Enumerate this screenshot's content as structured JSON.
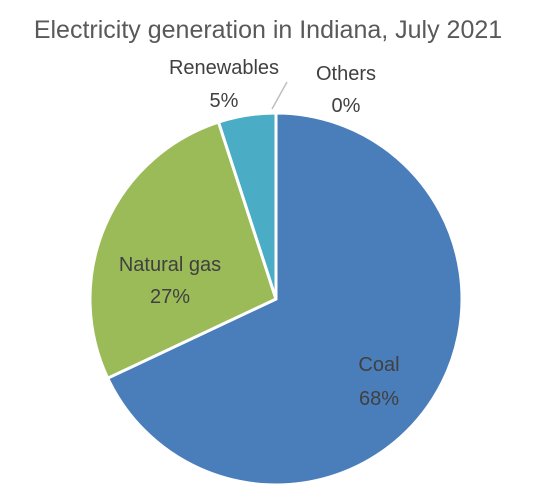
{
  "chart_data": {
    "type": "pie",
    "title": "Electricity generation in Indiana, July 2021",
    "slices": [
      {
        "name": "Coal",
        "value": 68,
        "label": "68%",
        "color": "#4a7ebb"
      },
      {
        "name": "Natural gas",
        "value": 27,
        "label": "27%",
        "color": "#9bbb59"
      },
      {
        "name": "Renewables",
        "value": 5,
        "label": "5%",
        "color": "#4bacc6"
      },
      {
        "name": "Others",
        "value": 0,
        "label": "0%",
        "color": "#a5a5a5"
      }
    ],
    "legend": "none",
    "data_labels": "category name and percentage"
  }
}
